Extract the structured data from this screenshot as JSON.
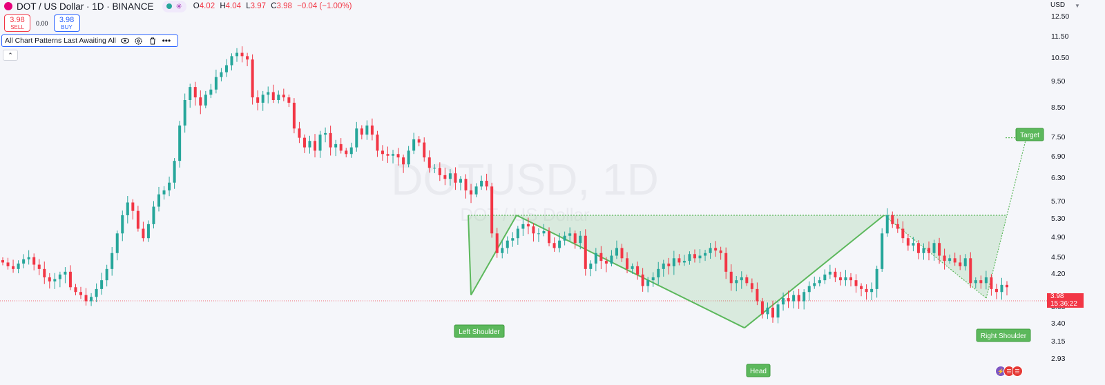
{
  "header": {
    "title": "DOT / US Dollar · 1D · BINANCE",
    "ohlc": {
      "o_label": "O",
      "o": "4.02",
      "h_label": "H",
      "h": "4.04",
      "l_label": "L",
      "l": "3.97",
      "c_label": "C",
      "c": "3.98",
      "chg": "−0.04 (−1.00%)"
    }
  },
  "trade": {
    "sell_price": "3.98",
    "sell_label": "SELL",
    "spread": "0.00",
    "buy_price": "3.98",
    "buy_label": "BUY"
  },
  "indicator": {
    "name": "All Chart Patterns Last Awaiting All"
  },
  "price_axis": {
    "currency": "USD",
    "labels": [
      "12.50",
      "11.50",
      "10.50",
      "9.50",
      "8.50",
      "7.50",
      "6.90",
      "6.30",
      "5.70",
      "5.30",
      "4.90",
      "4.50",
      "4.20",
      "3.98",
      "3.65",
      "3.40",
      "3.15",
      "2.93"
    ],
    "last_price": "3.98",
    "countdown": "15:36:22"
  },
  "chart_data": {
    "type": "candlestick",
    "watermark": {
      "symbol": "DOTUSD, 1D",
      "name": "DOT / US Dollar"
    },
    "last_price": 3.98,
    "series_close": [
      4.42,
      4.35,
      4.3,
      4.4,
      4.48,
      4.52,
      4.38,
      4.3,
      4.15,
      4.08,
      4.12,
      4.2,
      4.25,
      3.98,
      3.9,
      3.85,
      3.75,
      3.82,
      3.95,
      4.1,
      4.3,
      4.6,
      5.0,
      5.4,
      5.7,
      5.5,
      5.1,
      4.9,
      5.2,
      5.6,
      5.9,
      6.0,
      6.2,
      6.8,
      7.9,
      8.8,
      9.3,
      8.9,
      8.6,
      9.0,
      9.2,
      9.7,
      9.9,
      10.2,
      10.6,
      10.75,
      10.6,
      10.45,
      8.9,
      8.7,
      9.0,
      9.1,
      8.8,
      9.0,
      8.9,
      8.7,
      7.8,
      7.5,
      7.2,
      7.4,
      7.1,
      7.6,
      7.65,
      7.2,
      7.3,
      7.1,
      7.0,
      7.2,
      7.8,
      7.6,
      7.9,
      7.6,
      7.1,
      7.0,
      6.95,
      7.0,
      6.9,
      6.7,
      7.1,
      7.45,
      7.35,
      6.9,
      6.6,
      6.6,
      6.4,
      6.3,
      6.45,
      6.2,
      6.3,
      6.0,
      5.9,
      6.1,
      6.25,
      6.1,
      5.0,
      4.6,
      4.7,
      4.85,
      4.9,
      5.1,
      5.2,
      5.15,
      5.0,
      5.0,
      5.05,
      4.8,
      4.7,
      4.85,
      4.95,
      5.0,
      4.8,
      4.95,
      4.3,
      4.4,
      4.6,
      4.45,
      4.4,
      4.55,
      4.7,
      4.5,
      4.3,
      4.35,
      4.2,
      4.0,
      4.1,
      4.15,
      4.3,
      4.4,
      4.35,
      4.5,
      4.42,
      4.45,
      4.58,
      4.5,
      4.55,
      4.6,
      4.7,
      4.65,
      4.6,
      4.25,
      4.05,
      4.1,
      4.15,
      4.05,
      3.95,
      3.75,
      3.55,
      3.65,
      3.5,
      3.7,
      3.8,
      3.75,
      3.85,
      3.75,
      3.9,
      4.0,
      4.05,
      4.1,
      4.2,
      4.25,
      4.15,
      4.1,
      4.15,
      4.1,
      4.0,
      3.95,
      3.9,
      3.95,
      4.3,
      5.0,
      5.4,
      5.2,
      5.1,
      4.9,
      4.75,
      4.8,
      4.6,
      4.7,
      4.6,
      4.8,
      4.55,
      4.45,
      4.5,
      4.42,
      4.35,
      4.5,
      4.05,
      4.1,
      4.05,
      4.15,
      3.95,
      3.9,
      4.02,
      3.98
    ],
    "pattern": {
      "name": "Inverse Head and Shoulders",
      "points": [
        {
          "label": "Left Shoulder",
          "value": 3.85
        },
        {
          "label": "Head",
          "value": 3.35
        },
        {
          "label": "Right Shoulder",
          "value": 3.8
        }
      ],
      "neckline": 5.4,
      "target": {
        "label": "Target",
        "value": 7.5
      }
    },
    "y_axis": {
      "scale": "log",
      "range": [
        2.93,
        12.5
      ]
    }
  },
  "colors": {
    "up": "#26a69a",
    "down": "#f23645",
    "pattern": "#5cb85c",
    "pattern_fill": "rgba(92,184,92,0.18)",
    "accent": "#2962ff"
  },
  "badges": [
    "lightning-icon",
    "us-flag-icon",
    "us-flag-icon"
  ]
}
